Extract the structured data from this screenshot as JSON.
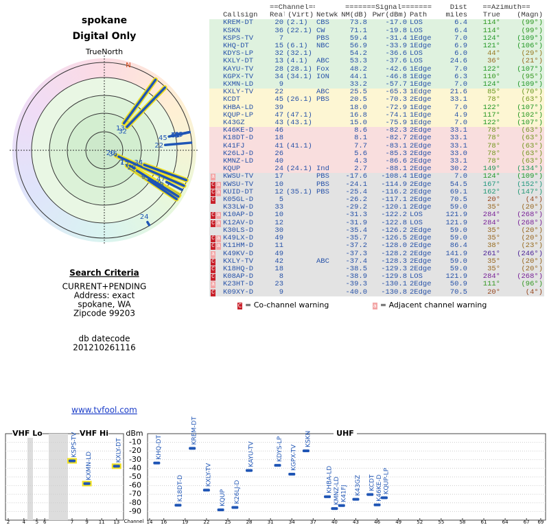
{
  "header": {
    "title": "spokane",
    "subtitle": "Digital Only",
    "north_label": "TrueNorth",
    "north_marker": "N"
  },
  "criteria": {
    "heading": "Search Criteria",
    "lines": [
      "CURRENT+PENDING",
      "Address: exact",
      "spokane, WA",
      "Zipcode 99203"
    ],
    "datecode_label": "db datecode",
    "datecode": "201210261116",
    "link": "www.tvfool.com"
  },
  "table": {
    "group_headers": [
      "==Channel==",
      "=======Signal=======",
      "Dist",
      "==Azimuth=="
    ],
    "columns": [
      "Callsign",
      "Real",
      "(Virt)",
      "Netwk",
      "NM(dB)",
      "Pwr(dBm)",
      "Path",
      "miles",
      "True",
      "(Magn)"
    ],
    "rows": [
      {
        "cells": [
          "KREM-DT",
          20,
          "(2.1)",
          "CBS",
          "73.8",
          "-17.0",
          "LOS",
          "6.4",
          "114°",
          "(99°)"
        ],
        "color": "#dff2df"
      },
      {
        "cells": [
          "KSKN",
          36,
          "(22.1)",
          "CW",
          "71.1",
          "-19.8",
          "LOS",
          "6.4",
          "114°",
          "(99°)"
        ],
        "color": "#dff2df"
      },
      {
        "cells": [
          "KSPS-TV",
          7,
          null,
          "PBS",
          "59.4",
          "-31.4",
          "1Edge",
          "7.0",
          "124°",
          "(109°)"
        ],
        "color": "#dff2df"
      },
      {
        "cells": [
          "KHQ-DT",
          15,
          "(6.1)",
          "NBC",
          "56.9",
          "-33.9",
          "1Edge",
          "6.9",
          "121°",
          "(106°)"
        ],
        "color": "#dff2df"
      },
      {
        "cells": [
          "KDYS-LP",
          32,
          "(32.1)",
          null,
          "54.2",
          "-36.6",
          "LOS",
          "6.0",
          "44°",
          "(29°)"
        ],
        "color": "#dff2df"
      },
      {
        "cells": [
          "KXLY-DT",
          13,
          "(4.1)",
          "ABC",
          "53.3",
          "-37.6",
          "LOS",
          "24.6",
          "36°",
          "(21°)"
        ],
        "color": "#dff2df"
      },
      {
        "cells": [
          "KAYU-TV",
          28,
          "(28.1)",
          "Fox",
          "48.2",
          "-42.6",
          "1Edge",
          "7.0",
          "122°",
          "(107°)"
        ],
        "color": "#dff2df"
      },
      {
        "cells": [
          "KGPX-TV",
          34,
          "(34.1)",
          "ION",
          "44.1",
          "-46.8",
          "1Edge",
          "6.3",
          "110°",
          "(95°)"
        ],
        "color": "#dff2df"
      },
      {
        "cells": [
          "KXMN-LD",
          9,
          null,
          null,
          "33.2",
          "-57.7",
          "1Edge",
          "7.0",
          "124°",
          "(109°)"
        ],
        "color": "#dff2df"
      },
      {
        "cells": [
          "KXLY-TV",
          22,
          null,
          "ABC",
          "25.5",
          "-65.3",
          "1Edge",
          "21.6",
          "85°",
          "(70°)"
        ],
        "color": "#fdf6d3"
      },
      {
        "cells": [
          "KCDT",
          45,
          "(26.1)",
          "PBS",
          "20.5",
          "-70.3",
          "2Edge",
          "33.1",
          "78°",
          "(63°)"
        ],
        "color": "#fdf6d3"
      },
      {
        "cells": [
          "KHBA-LD",
          39,
          null,
          null,
          "18.0",
          "-72.9",
          "1Edge",
          "7.0",
          "122°",
          "(107°)"
        ],
        "color": "#fdf6d3"
      },
      {
        "cells": [
          "KQUP-LP",
          47,
          "(47.1)",
          null,
          "16.8",
          "-74.1",
          "1Edge",
          "4.9",
          "117°",
          "(102°)"
        ],
        "color": "#fdf6d3"
      },
      {
        "cells": [
          "K43GZ",
          43,
          "(43.1)",
          null,
          "15.0",
          "-75.9",
          "1Edge",
          "7.0",
          "122°",
          "(107°)"
        ],
        "color": "#fdf6d3"
      },
      {
        "cells": [
          "K46KE-D",
          46,
          null,
          null,
          "8.6",
          "-82.3",
          "2Edge",
          "33.1",
          "78°",
          "(63°)"
        ],
        "color": "#f9dede"
      },
      {
        "cells": [
          "K18DT-D",
          18,
          null,
          null,
          "8.1",
          "-82.7",
          "2Edge",
          "33.1",
          "78°",
          "(63°)"
        ],
        "color": "#f9dede"
      },
      {
        "cells": [
          "K41FJ",
          41,
          "(41.1)",
          null,
          "7.7",
          "-83.1",
          "2Edge",
          "33.1",
          "78°",
          "(63°)"
        ],
        "color": "#f9dede"
      },
      {
        "cells": [
          "K26LJ-D",
          26,
          null,
          null,
          "5.6",
          "-85.3",
          "2Edge",
          "33.0",
          "78°",
          "(63°)"
        ],
        "color": "#f9dede"
      },
      {
        "cells": [
          "KMNZ-LD",
          40,
          null,
          null,
          "4.3",
          "-86.6",
          "2Edge",
          "33.1",
          "78°",
          "(63°)"
        ],
        "color": "#f9dede"
      },
      {
        "cells": [
          "KQUP",
          24,
          "(24.1)",
          "Ind",
          "2.7",
          "-88.1",
          "2Edge",
          "30.2",
          "149°",
          "(134°)"
        ],
        "color": "#f9dede"
      },
      {
        "cells": [
          "KWSU-TV",
          17,
          null,
          "PBS",
          "-17.6",
          "-108.4",
          "1Edge",
          "7.0",
          "124°",
          "(109°)"
        ],
        "color": "#e3e3e3",
        "warn": [
          "a"
        ]
      },
      {
        "cells": [
          "KWSU-TV",
          10,
          null,
          "PBS",
          "-24.1",
          "-114.9",
          "2Edge",
          "54.5",
          "167°",
          "(152°)"
        ],
        "color": "#e3e3e3",
        "warn": [
          "C",
          "a"
        ]
      },
      {
        "cells": [
          "KUID-DT",
          12,
          "(35.1)",
          "PBS",
          "-25.4",
          "-116.2",
          "2Edge",
          "69.1",
          "162°",
          "(147°)"
        ],
        "color": "#e3e3e3",
        "warn": [
          "C",
          "a"
        ]
      },
      {
        "cells": [
          "K05GL-D",
          5,
          null,
          null,
          "-26.2",
          "-117.1",
          "2Edge",
          "70.5",
          "20°",
          "(4°)"
        ],
        "color": "#e3e3e3",
        "warn": [
          "C"
        ]
      },
      {
        "cells": [
          "K33LW-D",
          33,
          null,
          null,
          "-29.2",
          "-120.1",
          "2Edge",
          "59.0",
          "35°",
          "(20°)"
        ],
        "color": "#e3e3e3"
      },
      {
        "cells": [
          "K10AP-D",
          10,
          null,
          null,
          "-31.3",
          "-122.2",
          "LOS",
          "121.9",
          "284°",
          "(268°)"
        ],
        "color": "#e3e3e3",
        "warn": [
          "C",
          "a"
        ]
      },
      {
        "cells": [
          "K12AV-D",
          12,
          null,
          null,
          "-31.9",
          "-122.8",
          "LOS",
          "121.9",
          "284°",
          "(268°)"
        ],
        "color": "#e3e3e3",
        "warn": [
          "C",
          "a"
        ]
      },
      {
        "cells": [
          "K30LS-D",
          30,
          null,
          null,
          "-35.4",
          "-126.2",
          "2Edge",
          "59.0",
          "35°",
          "(20°)"
        ],
        "color": "#e3e3e3"
      },
      {
        "cells": [
          "K49LX-D",
          49,
          null,
          null,
          "-35.7",
          "-126.5",
          "2Edge",
          "59.0",
          "35°",
          "(20°)"
        ],
        "color": "#e3e3e3",
        "warn": [
          "C",
          "a"
        ]
      },
      {
        "cells": [
          "K11HM-D",
          11,
          null,
          null,
          "-37.2",
          "-128.0",
          "2Edge",
          "86.4",
          "38°",
          "(23°)"
        ],
        "color": "#e3e3e3",
        "warn": [
          "C",
          "a"
        ]
      },
      {
        "cells": [
          "K49KV-D",
          49,
          null,
          null,
          "-37.3",
          "-128.2",
          "2Edge",
          "141.9",
          "261°",
          "(246°)"
        ],
        "color": "#e3e3e3",
        "warn": [
          "a"
        ]
      },
      {
        "cells": [
          "KXLY-TV",
          42,
          null,
          "ABC",
          "-37.4",
          "-128.3",
          "2Edge",
          "59.0",
          "35°",
          "(20°)"
        ],
        "color": "#e3e3e3",
        "warn": [
          "C"
        ]
      },
      {
        "cells": [
          "K18HQ-D",
          18,
          null,
          null,
          "-38.5",
          "-129.3",
          "2Edge",
          "59.0",
          "35°",
          "(20°)"
        ],
        "color": "#e3e3e3",
        "warn": [
          "C"
        ]
      },
      {
        "cells": [
          "K08AP-D",
          8,
          null,
          null,
          "-38.9",
          "-129.8",
          "LOS",
          "121.9",
          "284°",
          "(268°)"
        ],
        "color": "#e3e3e3",
        "warn": [
          "C"
        ]
      },
      {
        "cells": [
          "K23HT-D",
          23,
          null,
          null,
          "-39.3",
          "-130.1",
          "2Edge",
          "50.9",
          "111°",
          "(96°)"
        ],
        "color": "#e3e3e3",
        "warn": [
          "a"
        ]
      },
      {
        "cells": [
          "K09XY-D",
          9,
          null,
          null,
          "-40.0",
          "-130.8",
          "2Edge",
          "70.5",
          "20°",
          "(4°)"
        ],
        "color": "#e3e3e3",
        "warn": [
          "C"
        ]
      }
    ]
  },
  "legend": {
    "co_mark": "C",
    "co_text": "= Co-channel warning",
    "adj_mark": "a",
    "adj_text": "= Adjacent channel warning"
  },
  "spectrum": {
    "unit": "dBm",
    "bands": [
      "VHF Lo",
      "VHF Hi",
      "UHF"
    ],
    "channel_label": "Channel",
    "ylim": [
      -100,
      0
    ],
    "yticks": [
      -10,
      -20,
      -30,
      -40,
      -50,
      -60,
      -70,
      -80,
      -90
    ],
    "xticks": [
      2,
      4,
      5,
      6,
      7,
      9,
      11,
      13,
      14,
      16,
      19,
      22,
      25,
      28,
      31,
      34,
      37,
      40,
      43,
      46,
      49,
      52,
      55,
      58,
      61,
      64,
      67,
      69
    ]
  }
}
